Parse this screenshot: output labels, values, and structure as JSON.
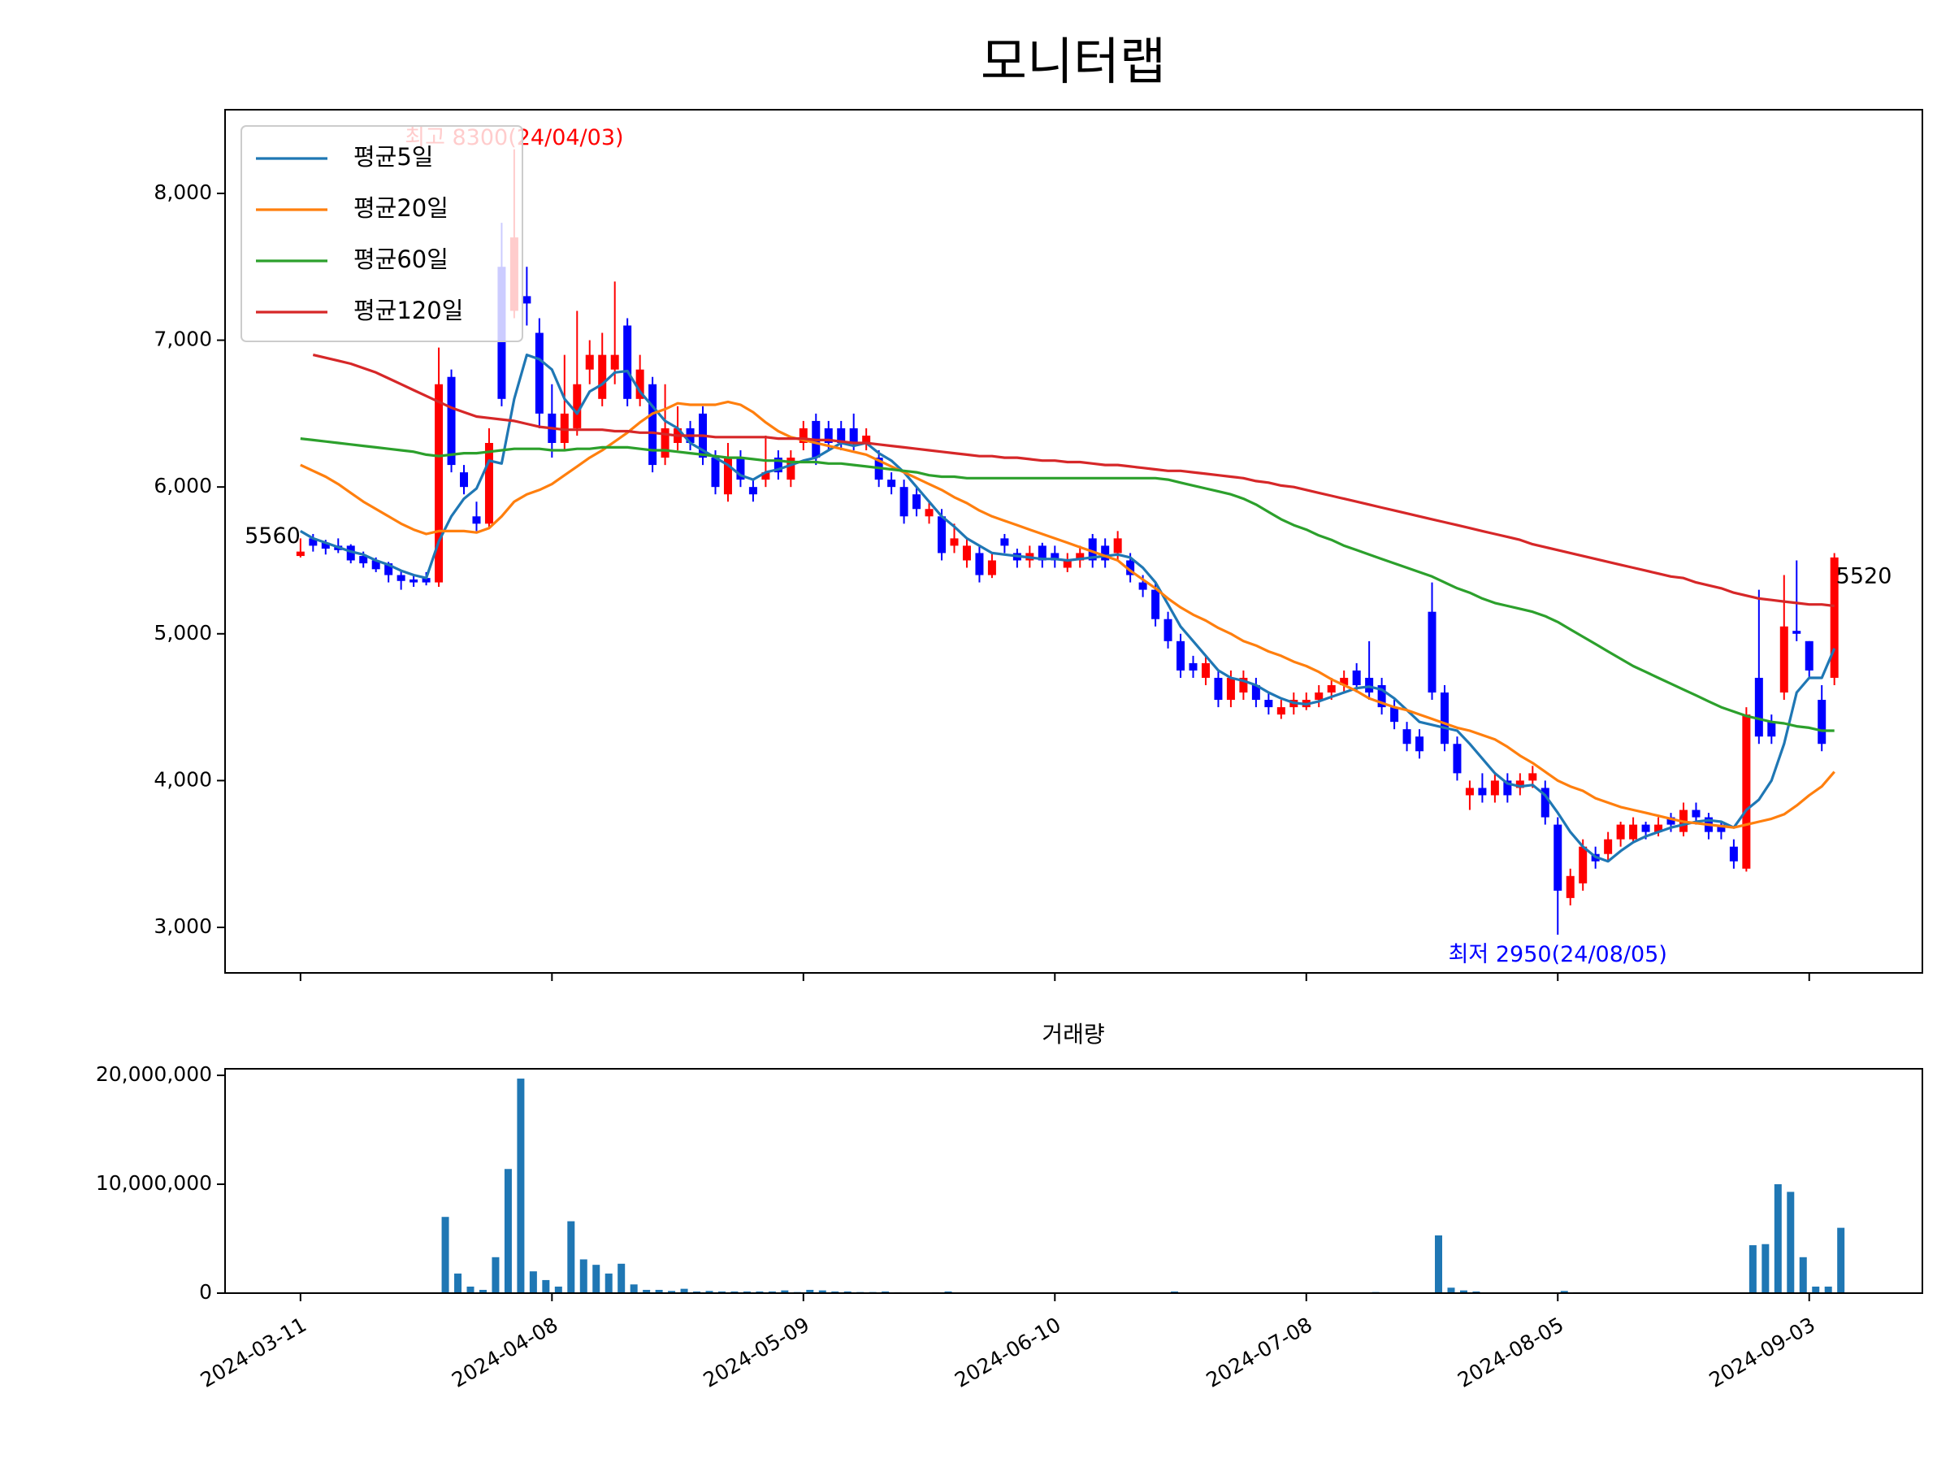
{
  "chart_data": {
    "type": "candlestick",
    "title": "모니터랩",
    "categories": [
      "2024-03-11",
      null,
      null,
      null,
      null,
      null,
      null,
      null,
      null,
      null,
      null,
      null,
      null,
      null,
      null,
      null,
      null,
      null,
      null,
      null,
      "2024-04-08",
      null,
      null,
      null,
      null,
      null,
      null,
      null,
      null,
      null,
      null,
      null,
      null,
      null,
      null,
      null,
      null,
      null,
      null,
      null,
      "2024-05-09",
      null,
      null,
      null,
      null,
      null,
      null,
      null,
      null,
      null,
      null,
      null,
      null,
      null,
      null,
      null,
      null,
      null,
      null,
      null,
      "2024-06-10",
      null,
      null,
      null,
      null,
      null,
      null,
      null,
      null,
      null,
      null,
      null,
      null,
      null,
      null,
      null,
      null,
      null,
      null,
      null,
      "2024-07-08",
      null,
      null,
      null,
      null,
      null,
      null,
      null,
      null,
      null,
      null,
      null,
      null,
      null,
      null,
      null,
      null,
      null,
      null,
      null,
      "2024-08-05",
      null,
      null,
      null,
      null,
      null,
      null,
      null,
      null,
      null,
      null,
      null,
      null,
      null,
      null,
      null,
      null,
      null,
      null,
      null,
      "2024-09-03",
      null,
      null
    ],
    "open": [
      5530,
      5650,
      5620,
      5600,
      5600,
      5530,
      5500,
      5480,
      5400,
      5370,
      5380,
      5350,
      6750,
      6100,
      5800,
      5750,
      7500,
      7200,
      7300,
      7050,
      6500,
      6300,
      6400,
      6800,
      6600,
      6800,
      7100,
      6600,
      6700,
      6200,
      6300,
      6400,
      6500,
      6200,
      5950,
      6200,
      6000,
      6050,
      6200,
      6050,
      6300,
      6450,
      6400,
      6400,
      6400,
      6300,
      6200,
      6050,
      6000,
      5950,
      5800,
      5800,
      5600,
      5500,
      5550,
      5400,
      5650,
      5550,
      5500,
      5600,
      5550,
      5450,
      5500,
      5650,
      5600,
      5550,
      5500,
      5350,
      5300,
      5100,
      4950,
      4800,
      4700,
      4700,
      4550,
      4600,
      4650,
      4550,
      4450,
      4500,
      4500,
      4550,
      4600,
      4650,
      4750,
      4700,
      4650,
      4500,
      4350,
      4300,
      5150,
      4600,
      4250,
      3900,
      3950,
      3900,
      4000,
      3950,
      4000,
      3950,
      3700,
      3200,
      3300,
      3500,
      3500,
      3600,
      3600,
      3700,
      3650,
      3750,
      3650,
      3800,
      3750,
      3700,
      3550,
      3400,
      4700,
      4400,
      4600,
      5020,
      4950,
      4550,
      4700
    ],
    "close": [
      5560,
      5600,
      5580,
      5570,
      5500,
      5480,
      5440,
      5400,
      5360,
      5350,
      5350,
      6700,
      6150,
      6000,
      5750,
      6300,
      6600,
      7700,
      7250,
      6500,
      6300,
      6500,
      6700,
      6900,
      6900,
      6900,
      6600,
      6800,
      6150,
      6400,
      6400,
      6300,
      6200,
      6000,
      6200,
      6050,
      5950,
      6100,
      6100,
      6200,
      6400,
      6200,
      6300,
      6300,
      6300,
      6350,
      6050,
      6000,
      5800,
      5850,
      5850,
      5550,
      5650,
      5600,
      5400,
      5500,
      5600,
      5500,
      5550,
      5500,
      5500,
      5500,
      5550,
      5500,
      5500,
      5650,
      5400,
      5300,
      5100,
      4950,
      4750,
      4750,
      4800,
      4550,
      4700,
      4700,
      4550,
      4500,
      4500,
      4550,
      4550,
      4600,
      4650,
      4700,
      4650,
      4600,
      4500,
      4400,
      4250,
      4200,
      4600,
      4250,
      4050,
      3950,
      3900,
      4000,
      3900,
      4000,
      4050,
      3750,
      3250,
      3350,
      3550,
      3450,
      3600,
      3700,
      3700,
      3650,
      3700,
      3700,
      3800,
      3750,
      3650,
      3650,
      3450,
      4450,
      4300,
      4300,
      5050,
      5000,
      4750,
      4250,
      5520
    ],
    "high": [
      5650,
      5680,
      5640,
      5650,
      5610,
      5560,
      5520,
      5490,
      5430,
      5400,
      5420,
      6950,
      6800,
      6150,
      5900,
      6400,
      7800,
      8300,
      7500,
      7150,
      6700,
      6900,
      7200,
      7000,
      7050,
      7400,
      7150,
      6900,
      6750,
      6700,
      6550,
      6450,
      6550,
      6250,
      6300,
      6250,
      6050,
      6350,
      6250,
      6250,
      6450,
      6500,
      6450,
      6450,
      6500,
      6400,
      6250,
      6100,
      6050,
      6000,
      5900,
      5850,
      5750,
      5650,
      5600,
      5550,
      5680,
      5580,
      5600,
      5620,
      5600,
      5550,
      5600,
      5680,
      5650,
      5700,
      5550,
      5400,
      5350,
      5150,
      5000,
      4850,
      4850,
      4750,
      4750,
      4750,
      4700,
      4600,
      4550,
      4600,
      4600,
      4650,
      4700,
      4750,
      4800,
      4950,
      4700,
      4550,
      4400,
      4350,
      5350,
      4650,
      4300,
      4000,
      4050,
      4050,
      4050,
      4050,
      4100,
      4000,
      3750,
      3400,
      3600,
      3550,
      3650,
      3720,
      3750,
      3720,
      3750,
      3780,
      3850,
      3850,
      3780,
      3720,
      3600,
      4500,
      5300,
      4450,
      5400,
      5500,
      4950,
      4650,
      5550
    ],
    "low": [
      5520,
      5560,
      5540,
      5550,
      5480,
      5450,
      5420,
      5350,
      5300,
      5320,
      5330,
      5320,
      6100,
      5950,
      5700,
      5720,
      6550,
      7150,
      7100,
      6400,
      6200,
      6250,
      6350,
      6700,
      6550,
      6700,
      6550,
      6550,
      6100,
      6150,
      6250,
      6250,
      6150,
      5950,
      5900,
      6000,
      5900,
      6000,
      6050,
      6000,
      6250,
      6150,
      6250,
      6250,
      6250,
      6250,
      6000,
      5950,
      5750,
      5800,
      5750,
      5500,
      5550,
      5450,
      5350,
      5380,
      5550,
      5450,
      5450,
      5450,
      5450,
      5420,
      5450,
      5450,
      5450,
      5500,
      5350,
      5250,
      5050,
      4900,
      4700,
      4700,
      4650,
      4500,
      4500,
      4550,
      4500,
      4450,
      4420,
      4450,
      4480,
      4500,
      4550,
      4600,
      4600,
      4550,
      4450,
      4350,
      4200,
      4150,
      4550,
      4200,
      4000,
      3800,
      3850,
      3850,
      3850,
      3900,
      3950,
      3700,
      2950,
      3150,
      3250,
      3400,
      3450,
      3550,
      3580,
      3600,
      3620,
      3650,
      3620,
      3700,
      3600,
      3600,
      3400,
      3380,
      4250,
      4250,
      4550,
      4950,
      4700,
      4200,
      4650
    ],
    "up_color": "#ff0000",
    "down_color": "#0000ff",
    "series": [
      {
        "name": "평균5일",
        "color": "#1f77b4",
        "values": [
          5700,
          5650,
          5620,
          5590,
          5560,
          5540,
          5500,
          5470,
          5430,
          5400,
          5380,
          5630,
          5800,
          5920,
          5990,
          6180,
          6160,
          6600,
          6900,
          6870,
          6800,
          6600,
          6500,
          6650,
          6700,
          6780,
          6790,
          6650,
          6550,
          6450,
          6400,
          6300,
          6250,
          6200,
          6150,
          6080,
          6050,
          6100,
          6120,
          6150,
          6180,
          6200,
          6250,
          6300,
          6280,
          6300,
          6230,
          6180,
          6100,
          6000,
          5900,
          5800,
          5730,
          5650,
          5600,
          5550,
          5540,
          5530,
          5520,
          5510,
          5510,
          5500,
          5510,
          5520,
          5530,
          5540,
          5520,
          5450,
          5350,
          5200,
          5050,
          4950,
          4850,
          4750,
          4700,
          4680,
          4650,
          4600,
          4560,
          4530,
          4520,
          4540,
          4570,
          4600,
          4630,
          4640,
          4620,
          4560,
          4480,
          4400,
          4380,
          4360,
          4340,
          4250,
          4150,
          4050,
          3980,
          3960,
          3970,
          3900,
          3780,
          3650,
          3550,
          3480,
          3450,
          3520,
          3580,
          3620,
          3650,
          3680,
          3700,
          3720,
          3730,
          3720,
          3680,
          3800,
          3870,
          4000,
          4250,
          4600,
          4700,
          4700,
          4900
        ]
      },
      {
        "name": "평균20일",
        "color": "#ff7f0e",
        "values": [
          6150,
          6110,
          6070,
          6020,
          5960,
          5900,
          5850,
          5800,
          5750,
          5710,
          5680,
          5700,
          5700,
          5700,
          5690,
          5720,
          5800,
          5900,
          5950,
          5980,
          6020,
          6080,
          6140,
          6200,
          6250,
          6310,
          6370,
          6440,
          6500,
          6530,
          6570,
          6560,
          6560,
          6560,
          6580,
          6560,
          6510,
          6440,
          6380,
          6340,
          6320,
          6300,
          6280,
          6260,
          6240,
          6220,
          6180,
          6140,
          6100,
          6060,
          6020,
          5980,
          5930,
          5890,
          5840,
          5800,
          5770,
          5740,
          5710,
          5680,
          5650,
          5620,
          5590,
          5560,
          5530,
          5500,
          5430,
          5370,
          5310,
          5240,
          5180,
          5130,
          5090,
          5040,
          5000,
          4950,
          4920,
          4880,
          4850,
          4810,
          4780,
          4740,
          4690,
          4650,
          4610,
          4560,
          4530,
          4500,
          4480,
          4450,
          4420,
          4390,
          4360,
          4340,
          4310,
          4280,
          4230,
          4170,
          4120,
          4060,
          4000,
          3960,
          3930,
          3880,
          3850,
          3820,
          3800,
          3780,
          3760,
          3740,
          3720,
          3710,
          3700,
          3690,
          3680,
          3700,
          3720,
          3740,
          3770,
          3830,
          3900,
          3960,
          4060
        ]
      },
      {
        "name": "평균60일",
        "color": "#2ca02c",
        "values": [
          6330,
          6320,
          6310,
          6300,
          6290,
          6280,
          6270,
          6260,
          6250,
          6240,
          6220,
          6210,
          6220,
          6230,
          6230,
          6240,
          6250,
          6260,
          6260,
          6260,
          6250,
          6250,
          6260,
          6260,
          6270,
          6270,
          6270,
          6260,
          6250,
          6250,
          6240,
          6230,
          6220,
          6210,
          6200,
          6200,
          6190,
          6180,
          6180,
          6170,
          6170,
          6170,
          6160,
          6160,
          6150,
          6140,
          6130,
          6120,
          6110,
          6100,
          6080,
          6070,
          6070,
          6060,
          6060,
          6060,
          6060,
          6060,
          6060,
          6060,
          6060,
          6060,
          6060,
          6060,
          6060,
          6060,
          6060,
          6060,
          6060,
          6050,
          6030,
          6010,
          5990,
          5970,
          5950,
          5920,
          5880,
          5830,
          5780,
          5740,
          5710,
          5670,
          5640,
          5600,
          5570,
          5540,
          5510,
          5480,
          5450,
          5420,
          5390,
          5350,
          5310,
          5280,
          5240,
          5210,
          5190,
          5170,
          5150,
          5120,
          5080,
          5030,
          4980,
          4930,
          4880,
          4830,
          4780,
          4740,
          4700,
          4660,
          4620,
          4580,
          4540,
          4500,
          4470,
          4440,
          4420,
          4400,
          4390,
          4370,
          4360,
          4340,
          4340
        ]
      },
      {
        "name": "평균120일",
        "color": "#d62728",
        "values": [
          null,
          6900,
          6880,
          6860,
          6840,
          6810,
          6780,
          6740,
          6700,
          6660,
          6620,
          6580,
          6540,
          6510,
          6480,
          6470,
          6460,
          6450,
          6430,
          6410,
          6400,
          6390,
          6390,
          6390,
          6390,
          6380,
          6380,
          6370,
          6370,
          6360,
          6350,
          6350,
          6350,
          6340,
          6340,
          6340,
          6340,
          6340,
          6330,
          6330,
          6330,
          6320,
          6320,
          6310,
          6300,
          6300,
          6290,
          6280,
          6270,
          6260,
          6250,
          6240,
          6230,
          6220,
          6210,
          6210,
          6200,
          6200,
          6190,
          6180,
          6180,
          6170,
          6170,
          6160,
          6150,
          6150,
          6140,
          6130,
          6120,
          6110,
          6110,
          6100,
          6090,
          6080,
          6070,
          6060,
          6040,
          6030,
          6010,
          6000,
          5980,
          5960,
          5940,
          5920,
          5900,
          5880,
          5860,
          5840,
          5820,
          5800,
          5780,
          5760,
          5740,
          5720,
          5700,
          5680,
          5660,
          5640,
          5610,
          5590,
          5570,
          5550,
          5530,
          5510,
          5490,
          5470,
          5450,
          5430,
          5410,
          5390,
          5380,
          5350,
          5330,
          5310,
          5280,
          5260,
          5240,
          5230,
          5220,
          5210,
          5200,
          5200,
          5190
        ]
      }
    ],
    "ylim": [
      2690,
      8570
    ],
    "yticks": [
      {
        "value": 3000,
        "label": "3,000"
      },
      {
        "value": 4000,
        "label": "4,000"
      },
      {
        "value": 5000,
        "label": "5,000"
      },
      {
        "value": 6000,
        "label": "6,000"
      },
      {
        "value": 7000,
        "label": "7,000"
      },
      {
        "value": 8000,
        "label": "8,000"
      }
    ],
    "high_label": "최고 8300(24/04/03)",
    "high_label_color": "#ff0000",
    "low_label": "최저 2950(24/08/05)",
    "low_label_color": "#0000ff",
    "first_label": "5560",
    "last_label": "5520",
    "legend": "upper left",
    "volume": {
      "title": "거래량",
      "color": "#1f77b4",
      "values": [
        50000,
        40000,
        30000,
        30000,
        40000,
        30000,
        30000,
        20000,
        30000,
        40000,
        60000,
        7000000,
        1800000,
        600000,
        300000,
        3300000,
        11400000,
        19700000,
        2000000,
        1200000,
        600000,
        6600000,
        3100000,
        2600000,
        1800000,
        2700000,
        800000,
        300000,
        300000,
        200000,
        400000,
        150000,
        200000,
        150000,
        150000,
        150000,
        150000,
        150000,
        250000,
        100000,
        300000,
        250000,
        150000,
        150000,
        100000,
        100000,
        150000,
        80000,
        60000,
        60000,
        80000,
        150000,
        60000,
        60000,
        40000,
        40000,
        50000,
        40000,
        40000,
        30000,
        30000,
        30000,
        40000,
        30000,
        30000,
        30000,
        30000,
        40000,
        40000,
        150000,
        60000,
        40000,
        30000,
        30000,
        30000,
        30000,
        30000,
        30000,
        30000,
        20000,
        30000,
        30000,
        30000,
        30000,
        30000,
        100000,
        30000,
        30000,
        40000,
        30000,
        5300000,
        500000,
        250000,
        150000,
        60000,
        50000,
        40000,
        40000,
        40000,
        60000,
        200000,
        80000,
        60000,
        40000,
        30000,
        30000,
        30000,
        20000,
        20000,
        20000,
        30000,
        30000,
        20000,
        20000,
        40000,
        4400000,
        4500000,
        10000000,
        9300000,
        3300000,
        600000,
        600000,
        6000000
      ],
      "ylim": [
        0,
        20600000
      ],
      "yticks": [
        0,
        {
          "value": 10000000,
          "label": "10,000,000"
        },
        {
          "value": 20000000,
          "label": "20,000,000"
        }
      ]
    }
  }
}
